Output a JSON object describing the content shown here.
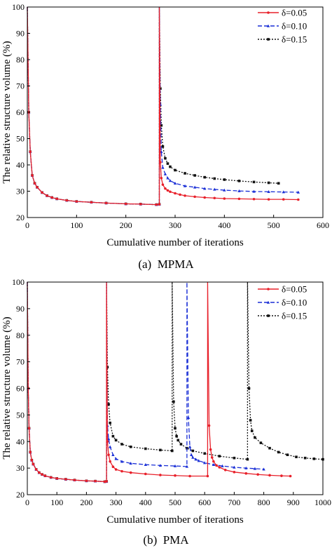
{
  "chart_data": [
    {
      "type": "line",
      "caption": "(a)  MPMA",
      "xlabel": "Cumulative number of iterations",
      "ylabel": "The relative structure volume (%)",
      "xlim": [
        0,
        600
      ],
      "ylim": [
        20,
        100
      ],
      "xticks": [
        0,
        100,
        200,
        300,
        400,
        500,
        600
      ],
      "yticks": [
        20,
        30,
        40,
        50,
        60,
        70,
        80,
        90,
        100
      ],
      "legend_position": "top-right",
      "series": [
        {
          "name": "δ=0.05",
          "color": "#e8202a",
          "dash": "solid",
          "marker": "circle",
          "x": [
            0,
            3,
            6,
            10,
            15,
            20,
            30,
            40,
            50,
            60,
            80,
            100,
            130,
            160,
            200,
            230,
            262,
            268,
            268,
            270,
            272,
            275,
            280,
            285,
            290,
            300,
            310,
            320,
            340,
            360,
            380,
            400,
            430,
            460,
            490,
            520,
            550
          ],
          "y": [
            100,
            60,
            45,
            36,
            33,
            31.5,
            29.5,
            28.3,
            27.6,
            27.1,
            26.5,
            26.1,
            25.8,
            25.5,
            25.2,
            25.1,
            24.9,
            25,
            100,
            41,
            35,
            32.5,
            31,
            30.3,
            29.8,
            29.2,
            28.7,
            28.3,
            27.9,
            27.6,
            27.4,
            27.2,
            27.1,
            27,
            26.9,
            26.9,
            26.8
          ]
        },
        {
          "name": "δ=0.10",
          "color": "#1a2fd6",
          "dash": "dashed",
          "marker": "triangle",
          "x": [
            0,
            3,
            6,
            10,
            15,
            20,
            30,
            40,
            50,
            60,
            80,
            100,
            130,
            160,
            200,
            230,
            262,
            268,
            268,
            270,
            272,
            275,
            280,
            285,
            290,
            300,
            320,
            340,
            360,
            380,
            400,
            430,
            460,
            490,
            520,
            550
          ],
          "y": [
            100,
            60,
            45,
            36,
            33,
            31.5,
            29.5,
            28.3,
            27.6,
            27.1,
            26.5,
            26.1,
            25.8,
            25.5,
            25.2,
            25.1,
            24.9,
            25,
            100,
            63,
            45,
            39,
            36.5,
            35,
            34,
            33,
            32,
            31.5,
            31,
            30.7,
            30.4,
            30.1,
            29.9,
            29.8,
            29.7,
            29.6
          ]
        },
        {
          "name": "δ=0.15",
          "color": "#111111",
          "dash": "dotted",
          "marker": "square",
          "x": [
            0,
            3,
            6,
            10,
            15,
            20,
            30,
            40,
            50,
            60,
            80,
            100,
            130,
            160,
            200,
            230,
            262,
            268,
            268,
            270,
            272,
            275,
            280,
            285,
            290,
            300,
            320,
            340,
            360,
            380,
            400,
            430,
            460,
            490,
            510
          ],
          "y": [
            100,
            60,
            45,
            36,
            33,
            31.5,
            29.5,
            28.3,
            27.6,
            27.1,
            26.5,
            26.1,
            25.8,
            25.5,
            25.2,
            25.1,
            24.9,
            25,
            100,
            69,
            55,
            47,
            42.5,
            40.5,
            39.3,
            38,
            36.8,
            36,
            35.3,
            34.8,
            34.4,
            33.9,
            33.5,
            33.2,
            33
          ]
        }
      ]
    },
    {
      "type": "line",
      "caption": "(b)  PMA",
      "xlabel": "Cumulative number of iterations",
      "ylabel": "The relative structure volume (%)",
      "xlim": [
        0,
        1000
      ],
      "ylim": [
        20,
        100
      ],
      "xticks": [
        0,
        100,
        200,
        300,
        400,
        500,
        600,
        700,
        800,
        900,
        1000
      ],
      "yticks": [
        20,
        30,
        40,
        50,
        60,
        70,
        80,
        90,
        100
      ],
      "legend_position": "top-right",
      "series": [
        {
          "name": "δ=0.05",
          "color": "#e8202a",
          "dash": "solid",
          "marker": "circle",
          "x": [
            0,
            3,
            6,
            10,
            15,
            20,
            30,
            40,
            50,
            60,
            80,
            100,
            130,
            160,
            200,
            230,
            262,
            268,
            268,
            271,
            275,
            280,
            290,
            300,
            320,
            350,
            400,
            450,
            500,
            550,
            610,
            610,
            615,
            620,
            625,
            630,
            640,
            650,
            670,
            700,
            740,
            780,
            820,
            860,
            890
          ],
          "y": [
            100,
            60,
            45,
            36,
            33,
            31.5,
            29.5,
            28.3,
            27.6,
            27.1,
            26.5,
            26.1,
            25.8,
            25.5,
            25.2,
            25.1,
            24.9,
            25,
            100,
            40,
            35,
            32.5,
            30.5,
            29.5,
            28.8,
            28.3,
            27.8,
            27.4,
            27.2,
            27,
            27,
            100,
            46,
            37,
            34,
            32.5,
            31,
            30.3,
            29.3,
            28.5,
            28,
            27.6,
            27.3,
            27.1,
            27
          ]
        },
        {
          "name": "δ=0.10",
          "color": "#1a2fd6",
          "dash": "dashed",
          "marker": "triangle",
          "x": [
            0,
            3,
            6,
            10,
            15,
            20,
            30,
            40,
            50,
            60,
            80,
            100,
            130,
            160,
            200,
            230,
            262,
            268,
            268,
            271,
            275,
            280,
            290,
            300,
            320,
            350,
            400,
            450,
            500,
            540,
            540,
            545,
            550,
            555,
            560,
            570,
            580,
            600,
            630,
            660,
            700,
            740,
            770,
            800
          ],
          "y": [
            100,
            60,
            45,
            36,
            33,
            31.5,
            29.5,
            28.3,
            27.6,
            27.1,
            26.5,
            26.1,
            25.8,
            25.5,
            25.2,
            25.1,
            24.9,
            25,
            100,
            46,
            41,
            38,
            35,
            33.5,
            32.5,
            31.8,
            31.3,
            31,
            30.8,
            30.6,
            100,
            49,
            38,
            35,
            34,
            33.3,
            32.8,
            32,
            31.3,
            30.8,
            30.3,
            30,
            29.8,
            29.6
          ]
        },
        {
          "name": "δ=0.15",
          "color": "#111111",
          "dash": "dotted",
          "marker": "square",
          "x": [
            0,
            3,
            6,
            10,
            15,
            20,
            30,
            40,
            50,
            60,
            80,
            100,
            130,
            160,
            200,
            230,
            262,
            268,
            268,
            271,
            275,
            280,
            290,
            300,
            320,
            350,
            400,
            450,
            490,
            490,
            495,
            500,
            505,
            510,
            520,
            540,
            560,
            600,
            650,
            700,
            745,
            745,
            750,
            755,
            760,
            770,
            790,
            820,
            850,
            880,
            910,
            940,
            970,
            1000
          ],
          "y": [
            100,
            60,
            45,
            36,
            33,
            31.5,
            29.5,
            28.3,
            27.6,
            27.1,
            26.5,
            26.1,
            25.8,
            25.5,
            25.2,
            25.1,
            24.9,
            25,
            100,
            68,
            54,
            47,
            42,
            40.5,
            39,
            38,
            37.3,
            36.8,
            36.5,
            100,
            55,
            45,
            42,
            40.5,
            39,
            37.5,
            36.5,
            35.5,
            34.5,
            33.8,
            33.3,
            100,
            60,
            48,
            44,
            41.5,
            39.5,
            37.5,
            36,
            35,
            34.2,
            33.8,
            33.5,
            33.3
          ]
        }
      ]
    }
  ]
}
